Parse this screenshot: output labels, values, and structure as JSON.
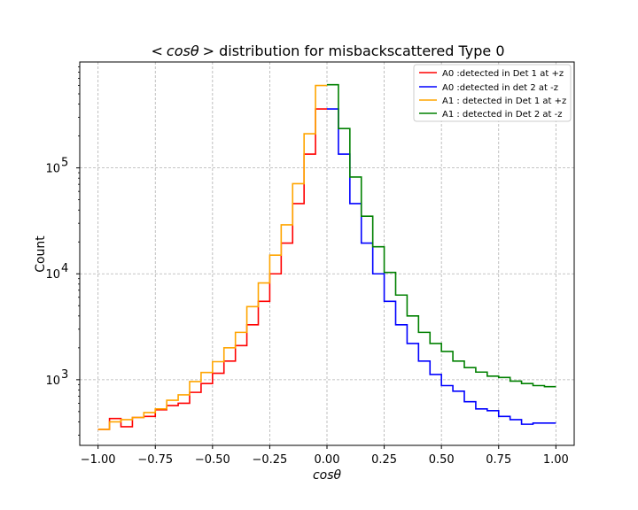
{
  "chart_data": {
    "type": "line",
    "title_prefix": "<",
    "title_math": "cosθ",
    "title_suffix": "> distribution for misbackscattered Type 0",
    "xlabel": "cosθ",
    "ylabel": "Count",
    "y_scale": "log",
    "xlim": [
      -1.08,
      1.08
    ],
    "ylim": [
      240,
      1000000
    ],
    "x_ticks": [
      -1.0,
      -0.75,
      -0.5,
      -0.25,
      0.0,
      0.25,
      0.5,
      0.75,
      1.0
    ],
    "x_tick_labels": [
      "−1.00",
      "−0.75",
      "−0.50",
      "−0.25",
      "0.00",
      "0.25",
      "0.50",
      "0.75",
      "1.00"
    ],
    "y_ticks": [
      1000,
      10000,
      100000
    ],
    "y_tick_labels": [
      {
        "base": "10",
        "exp": "3"
      },
      {
        "base": "10",
        "exp": "4"
      },
      {
        "base": "10",
        "exp": "5"
      }
    ],
    "grid": true,
    "legend_position": "top-right",
    "series": [
      {
        "name": "A0 :detected in Det 1 at +z",
        "color": "#ff0000",
        "bin_edges": [
          -1.0,
          -0.95,
          -0.9,
          -0.85,
          -0.8,
          -0.75,
          -0.7,
          -0.65,
          -0.6,
          -0.55,
          -0.5,
          -0.45,
          -0.4,
          -0.35,
          -0.3,
          -0.25,
          -0.2,
          -0.15,
          -0.1,
          -0.05,
          0.0
        ],
        "counts": [
          340,
          430,
          360,
          440,
          450,
          520,
          570,
          600,
          760,
          920,
          1150,
          1500,
          2100,
          3300,
          5500,
          10000,
          19500,
          46000,
          135000,
          360000
        ]
      },
      {
        "name": "A0 :detected in det 2 at -z",
        "color": "#0000ff",
        "bin_edges": [
          0.0,
          0.05,
          0.1,
          0.15,
          0.2,
          0.25,
          0.3,
          0.35,
          0.4,
          0.45,
          0.5,
          0.55,
          0.6,
          0.65,
          0.7,
          0.75,
          0.8,
          0.85,
          0.9,
          0.95,
          1.0
        ],
        "counts": [
          360000,
          135000,
          46000,
          19500,
          10000,
          5500,
          3300,
          2200,
          1500,
          1120,
          880,
          780,
          620,
          530,
          510,
          450,
          420,
          380,
          390,
          390
        ]
      },
      {
        "name": "A1 : detected in Det 1 at +z",
        "color": "#ffa500",
        "bin_edges": [
          -1.0,
          -0.95,
          -0.9,
          -0.85,
          -0.8,
          -0.75,
          -0.7,
          -0.65,
          -0.6,
          -0.55,
          -0.5,
          -0.45,
          -0.4,
          -0.35,
          -0.3,
          -0.25,
          -0.2,
          -0.15,
          -0.1,
          -0.05,
          0.0
        ],
        "counts": [
          340,
          400,
          420,
          440,
          490,
          530,
          640,
          720,
          960,
          1170,
          1480,
          2000,
          2800,
          4900,
          8200,
          15000,
          29000,
          71000,
          210000,
          600000
        ]
      },
      {
        "name": "A1 : detected in Det 2 at -z",
        "color": "#008000",
        "bin_edges": [
          0.0,
          0.05,
          0.1,
          0.15,
          0.2,
          0.25,
          0.3,
          0.35,
          0.4,
          0.45,
          0.5,
          0.55,
          0.6,
          0.65,
          0.7,
          0.75,
          0.8,
          0.85,
          0.9,
          0.95,
          1.0
        ],
        "counts": [
          610000,
          235000,
          82000,
          35000,
          18000,
          10300,
          6300,
          4000,
          2800,
          2200,
          1850,
          1500,
          1300,
          1180,
          1080,
          1050,
          970,
          920,
          880,
          860
        ]
      }
    ]
  }
}
